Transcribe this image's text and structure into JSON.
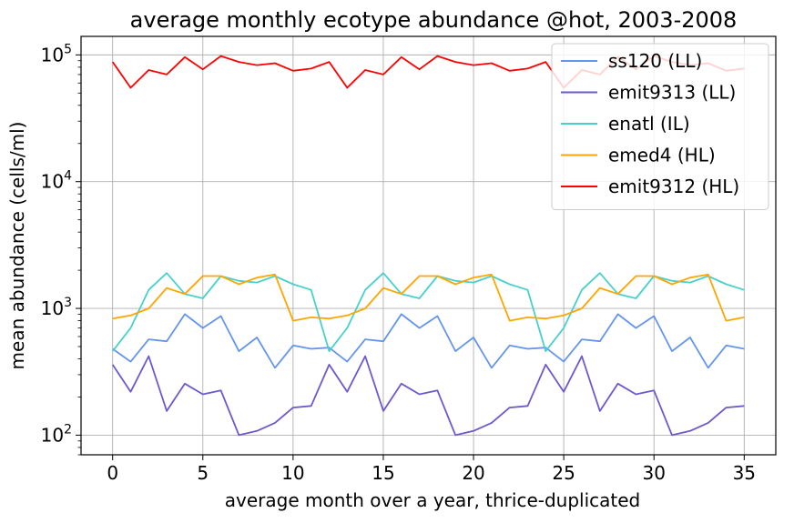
{
  "chart_data": {
    "type": "line",
    "title": "average monthly ecotype abundance @hot, 2003-2008",
    "xlabel": "average month over a year, thrice-duplicated",
    "ylabel": "mean abundance (cells/ml)",
    "xlim": [
      -1.75,
      36.75
    ],
    "ylim": [
      70,
      140000
    ],
    "yscale": "log",
    "grid": true,
    "legend_position": "upper right",
    "x": [
      0,
      1,
      2,
      3,
      4,
      5,
      6,
      7,
      8,
      9,
      10,
      11,
      12,
      13,
      14,
      15,
      16,
      17,
      18,
      19,
      20,
      21,
      22,
      23,
      24,
      25,
      26,
      27,
      28,
      29,
      30,
      31,
      32,
      33,
      34,
      35
    ],
    "x_ticks": [
      {
        "value": 0,
        "label": "0"
      },
      {
        "value": 5,
        "label": "5"
      },
      {
        "value": 10,
        "label": "10"
      },
      {
        "value": 15,
        "label": "15"
      },
      {
        "value": 20,
        "label": "20"
      },
      {
        "value": 25,
        "label": "25"
      },
      {
        "value": 30,
        "label": "30"
      },
      {
        "value": 35,
        "label": "35"
      }
    ],
    "y_ticks": [
      {
        "value": 100,
        "base": "10",
        "exp": "2"
      },
      {
        "value": 1000,
        "base": "10",
        "exp": "3"
      },
      {
        "value": 10000,
        "base": "10",
        "exp": "4"
      },
      {
        "value": 100000,
        "base": "10",
        "exp": "5"
      }
    ],
    "series": [
      {
        "name": "ss120 (LL)",
        "color": "#6495ED",
        "values": [
          480,
          380,
          570,
          550,
          900,
          700,
          870,
          460,
          590,
          340,
          510,
          480,
          490,
          380,
          570,
          550,
          900,
          700,
          870,
          460,
          590,
          340,
          510,
          480,
          490,
          380,
          570,
          550,
          900,
          700,
          870,
          460,
          590,
          340,
          510,
          480
        ]
      },
      {
        "name": "emit9313 (LL)",
        "color": "#6A5ACD",
        "values": [
          360,
          220,
          420,
          155,
          255,
          210,
          225,
          100,
          108,
          125,
          165,
          170,
          360,
          220,
          420,
          155,
          255,
          210,
          225,
          100,
          108,
          125,
          165,
          170,
          360,
          220,
          420,
          155,
          255,
          210,
          225,
          100,
          108,
          125,
          165,
          170
        ]
      },
      {
        "name": "enatl (IL)",
        "color": "#48D1CC",
        "values": [
          460,
          700,
          1400,
          1900,
          1300,
          1200,
          1800,
          1650,
          1600,
          1800,
          1550,
          1400,
          460,
          700,
          1400,
          1900,
          1300,
          1200,
          1800,
          1650,
          1600,
          1800,
          1550,
          1400,
          460,
          700,
          1400,
          1900,
          1300,
          1200,
          1800,
          1650,
          1600,
          1800,
          1550,
          1400
        ]
      },
      {
        "name": "emed4 (HL)",
        "color": "#FFA500",
        "values": [
          830,
          880,
          1000,
          1450,
          1300,
          1800,
          1800,
          1550,
          1750,
          1850,
          800,
          850,
          830,
          880,
          1000,
          1450,
          1300,
          1800,
          1800,
          1550,
          1750,
          1850,
          800,
          850,
          830,
          880,
          1000,
          1450,
          1300,
          1800,
          1800,
          1550,
          1750,
          1850,
          800,
          850
        ]
      },
      {
        "name": "emit9312 (HL)",
        "color": "#FF0000",
        "values": [
          88000,
          55000,
          76000,
          70000,
          96000,
          77000,
          98000,
          88000,
          83000,
          86000,
          75000,
          78000,
          88000,
          55000,
          76000,
          70000,
          96000,
          77000,
          98000,
          88000,
          83000,
          86000,
          75000,
          78000,
          88000,
          55000,
          76000,
          70000,
          96000,
          77000,
          98000,
          88000,
          83000,
          86000,
          75000,
          78000
        ]
      }
    ]
  }
}
